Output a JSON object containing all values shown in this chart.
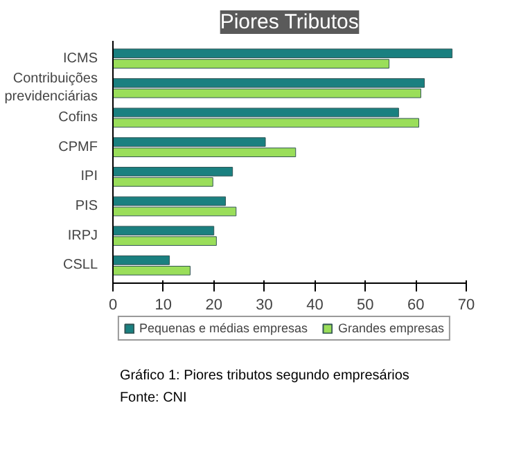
{
  "chart_data": {
    "type": "bar",
    "orientation": "horizontal",
    "title": "Piores Tributos",
    "categories": [
      "ICMS",
      "Contribuições previdenciárias",
      "Cofins",
      "CPMF",
      "IPI",
      "PIS",
      "IRPJ",
      "CSLL"
    ],
    "series": [
      {
        "name": "Pequenas e médias empresas",
        "color": "#1a8080",
        "values": [
          67.2,
          61.7,
          56.6,
          30.2,
          23.7,
          22.3,
          20.0,
          11.2
        ]
      },
      {
        "name": "Grandes empresas",
        "color": "#9ade5a",
        "values": [
          54.7,
          61.0,
          60.6,
          36.2,
          19.8,
          24.4,
          20.5,
          15.3
        ]
      }
    ],
    "xlim": [
      0,
      70
    ],
    "xticks": [
      0,
      10,
      20,
      30,
      40,
      50,
      60,
      70
    ],
    "grid": false,
    "legend": "bottom",
    "annotations": [
      "Gráfico 1: Piores tributos segundo empresários",
      "Fonte: CNI"
    ]
  }
}
